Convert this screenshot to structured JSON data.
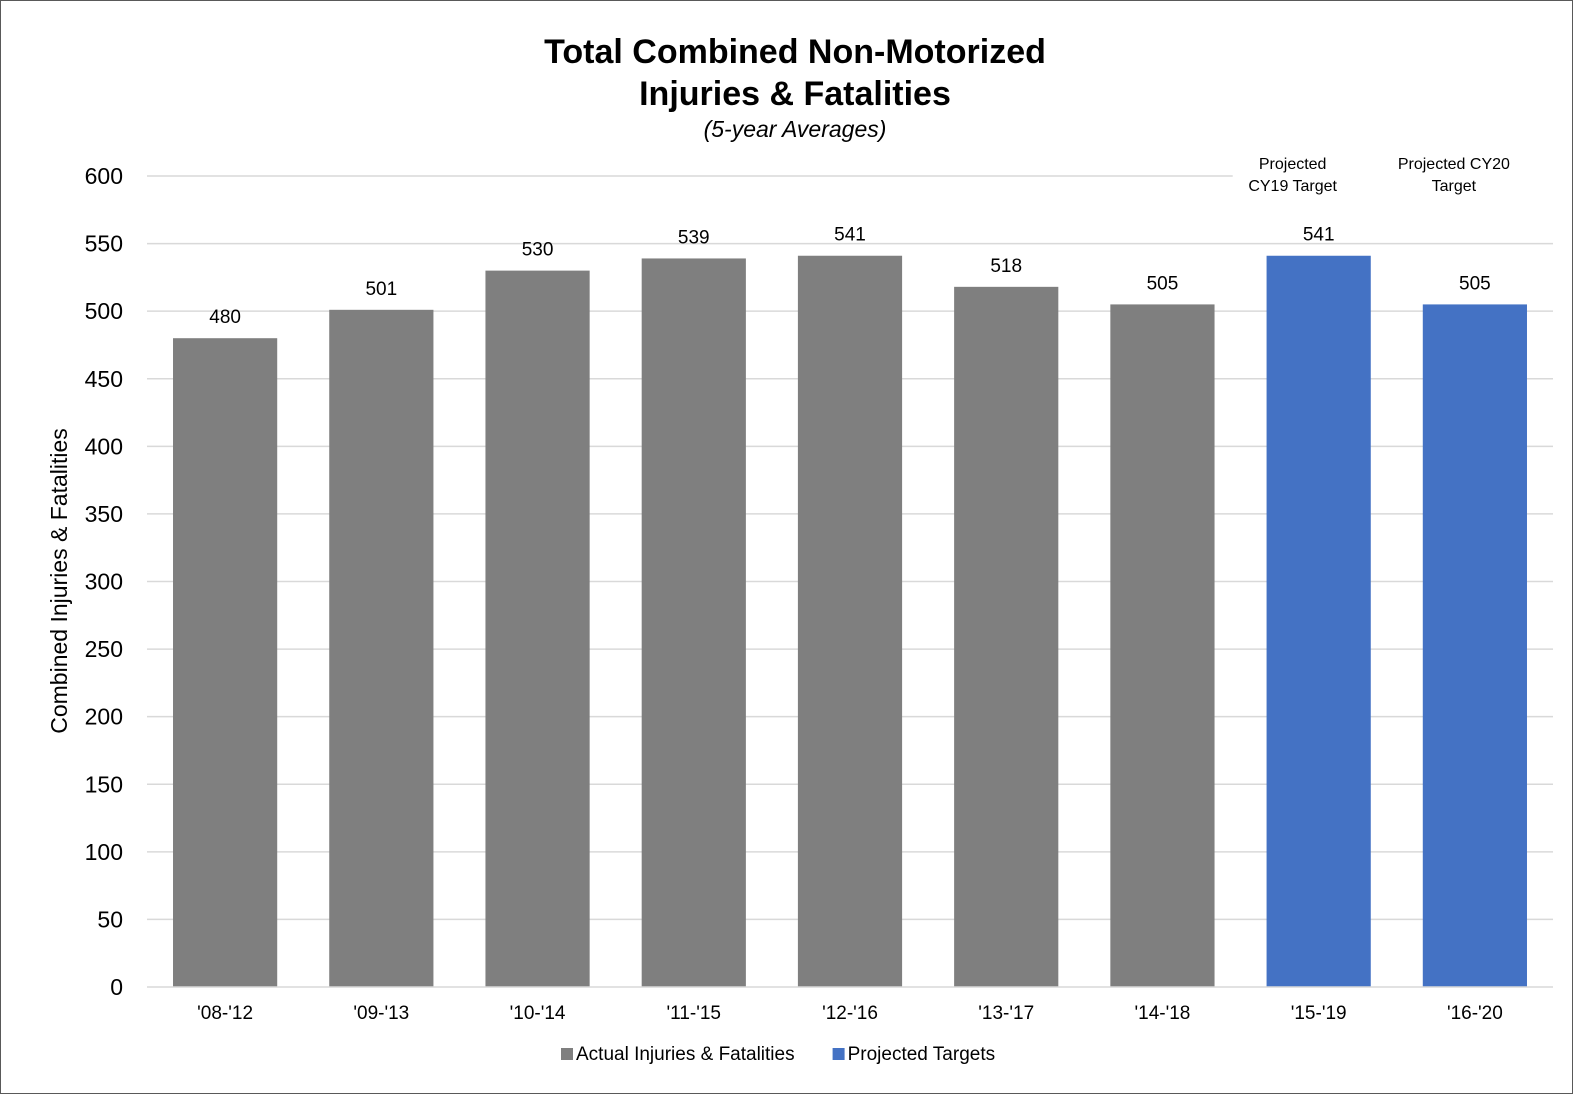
{
  "chart_data": {
    "type": "bar",
    "title_lines": [
      "Total Combined Non-Motorized",
      "Injuries & Fatalities"
    ],
    "subtitle": "(5-year Averages)",
    "ylabel": "Combined Injuries & Fatalities",
    "xlabel": "",
    "ylim": [
      0,
      600
    ],
    "yticks": [
      0,
      50,
      100,
      150,
      200,
      250,
      300,
      350,
      400,
      450,
      500,
      550,
      600
    ],
    "categories": [
      "'08-'12",
      "'09-'13",
      "'10-'14",
      "'11-'15",
      "'12-'16",
      "'13-'17",
      "'14-'18",
      "'15-'19",
      "'16-'20"
    ],
    "values": [
      480,
      501,
      530,
      539,
      541,
      518,
      505,
      541,
      505
    ],
    "series_index": [
      0,
      0,
      0,
      0,
      0,
      0,
      0,
      1,
      1
    ],
    "series": [
      {
        "name": "Actual Injuries & Fatalities",
        "color": "#7f7f7f"
      },
      {
        "name": "Projected Targets",
        "color": "#4472c4"
      }
    ],
    "annotations": [
      {
        "category": "'15-'19",
        "lines": [
          "Projected",
          "CY19 Target"
        ]
      },
      {
        "category": "'16-'20",
        "lines": [
          "Projected CY20",
          "Target"
        ]
      }
    ],
    "grid": true,
    "legend_position": "bottom"
  }
}
